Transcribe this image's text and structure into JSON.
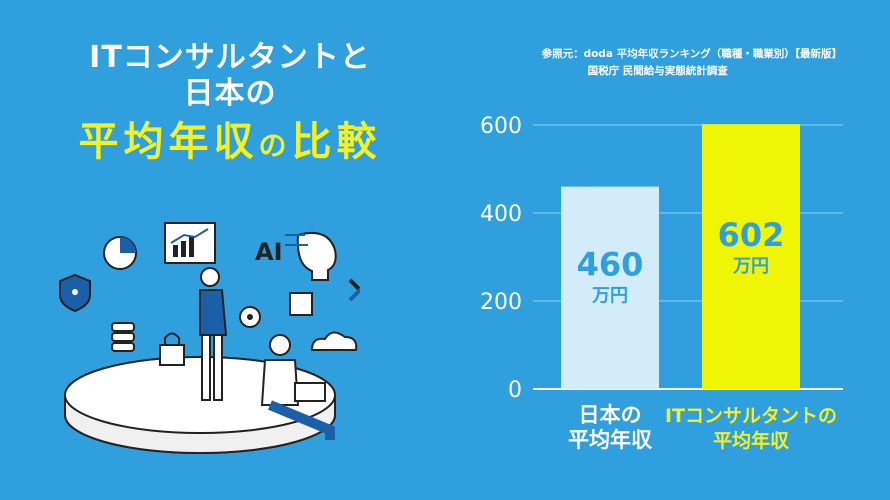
{
  "title": {
    "line1": "ITコンサルタントと",
    "line2": "日本の",
    "line3_part1": "平均年収",
    "line3_no": "の",
    "line3_part2": "比較"
  },
  "source": {
    "line1": "参照元：doda 平均年収ランキング（職種・職業別）【最新版】",
    "line2": "国税庁 民間給与実態統計調査"
  },
  "illustration": {
    "ai_label": "AI"
  },
  "colors": {
    "background": "#2f9fde",
    "bar_japan": "#d2ecfa",
    "bar_it": "#f0f505",
    "value_japan": "#2f9fde",
    "value_it": "#2f9fde",
    "label_japan": "#ffffff",
    "label_it": "#f5f020",
    "title_accent": "#f5f020"
  },
  "chart_data": {
    "type": "bar",
    "categories": [
      "日本の\n平均年収",
      "ITコンサルタントの\n平均年収"
    ],
    "values": [
      460,
      602
    ],
    "value_labels": [
      {
        "value": "460",
        "unit": "万円"
      },
      {
        "value": "602",
        "unit": "万円"
      }
    ],
    "ylim": [
      0,
      600
    ],
    "yticks": [
      0,
      200,
      400,
      600
    ],
    "grid": true
  }
}
